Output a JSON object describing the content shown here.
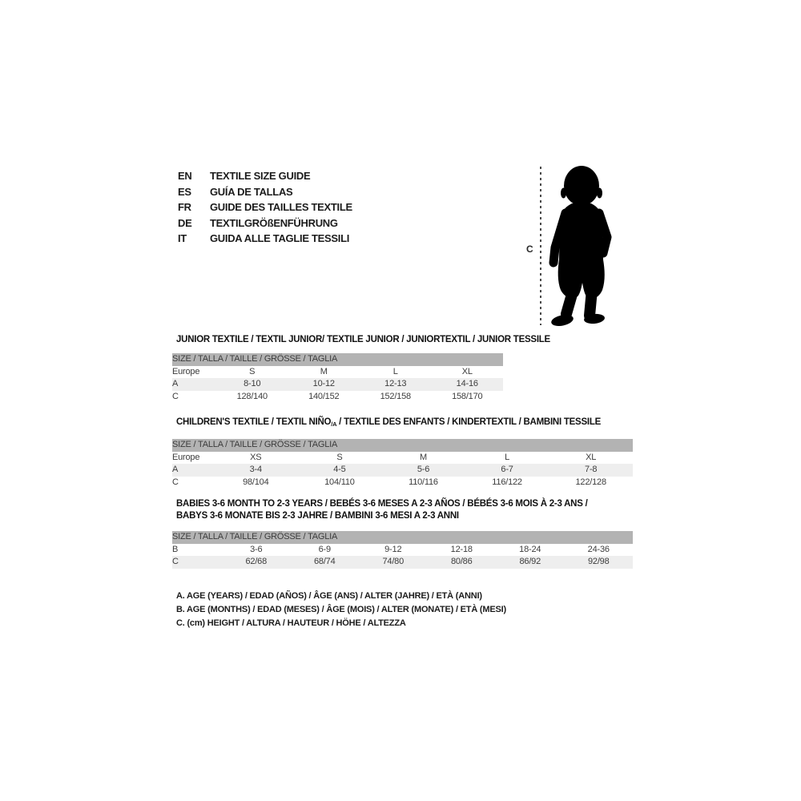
{
  "colors": {
    "header_bar": "#b3b3b3",
    "row_alt": "#eeeeee",
    "text_dark": "#1c1c1c",
    "table_text": "#3c3c3c",
    "silhouette": "#000000",
    "dash_line": "#4a4a4a",
    "page_bg": "#ffffff"
  },
  "language_guide": {
    "items": [
      {
        "code": "EN",
        "label": "TEXTILE SIZE GUIDE"
      },
      {
        "code": "ES",
        "label": "GUÍA DE TALLAS"
      },
      {
        "code": "FR",
        "label": "GUIDE DES TAILLES TEXTILE"
      },
      {
        "code": "DE",
        "label": "TEXTILGRÖßENFÜHRUNG"
      },
      {
        "code": "IT",
        "label": "GUIDA ALLE TAGLIE TESSILI"
      }
    ]
  },
  "figure": {
    "label": "C",
    "icon": "baby-silhouette"
  },
  "sections": [
    {
      "title_lines": [
        [
          {
            "t": "JUNIOR TEXTILE / TEXTIL JUNIOR/ TEXTILE JUNIOR / JUNIORTEXTIL / JUNIOR TESSILE"
          }
        ]
      ],
      "size_header": "SIZE / TALLA / TAILLE / GRÖSSE / TAGLIA",
      "rows": [
        {
          "label": "Europe",
          "values": [
            "S",
            "M",
            "L",
            "XL"
          ]
        },
        {
          "label": "A",
          "values": [
            "8-10",
            "10-12",
            "12-13",
            "14-16"
          ]
        },
        {
          "label": "C",
          "values": [
            "128/140",
            "140/152",
            "152/158",
            "158/170"
          ]
        }
      ]
    },
    {
      "title_lines": [
        [
          {
            "t": "CHILDREN'S TEXTILE / TEXTIL NIÑO"
          },
          {
            "t": "/A",
            "sub": true
          },
          {
            "t": " / TEXTILE DES ENFANTS / KINDERTEXTIL / BAMBINI TESSILE"
          }
        ]
      ],
      "size_header": "SIZE / TALLA / TAILLE / GRÖSSE / TAGLIA",
      "rows": [
        {
          "label": "Europe",
          "values": [
            "XS",
            "S",
            "M",
            "L",
            "XL"
          ]
        },
        {
          "label": "A",
          "values": [
            "3-4",
            "4-5",
            "5-6",
            "6-7",
            "7-8"
          ]
        },
        {
          "label": "C",
          "values": [
            "98/104",
            "104/110",
            "110/116",
            "116/122",
            "122/128"
          ]
        }
      ]
    },
    {
      "title_lines": [
        [
          {
            "t": "BABIES 3-6 MONTH TO 2-3 YEARS / BEBÉS 3-6 MESES A 2-3 AÑOS / BÉBÉS 3-6 MOIS À 2-3 ANS /"
          }
        ],
        [
          {
            "t": "BABYS 3-6 MONATE BIS 2-3 JAHRE / BAMBINI 3-6 MESI A 2-3 ANNI"
          }
        ]
      ],
      "size_header": "SIZE / TALLA / TAILLE / GRÖSSE / TAGLIA",
      "rows": [
        {
          "label": "B",
          "values": [
            "3-6",
            "6-9",
            "9-12",
            "12-18",
            "18-24",
            "24-36"
          ]
        },
        {
          "label": "C",
          "values": [
            "62/68",
            "68/74",
            "74/80",
            "80/86",
            "86/92",
            "92/98"
          ]
        }
      ]
    }
  ],
  "legend": {
    "lines": [
      "A. AGE (YEARS) / EDAD (AÑOS) / ÂGE (ANS) / ALTER (JAHRE) / ETÀ (ANNI)",
      "B. AGE (MONTHS) / EDAD (MESES) / ÂGE (MOIS) / ALTER (MONATE) / ETÀ (MESI)",
      "C. (cm) HEIGHT / ALTURA / HAUTEUR / HÖHE / ALTEZZA"
    ]
  }
}
